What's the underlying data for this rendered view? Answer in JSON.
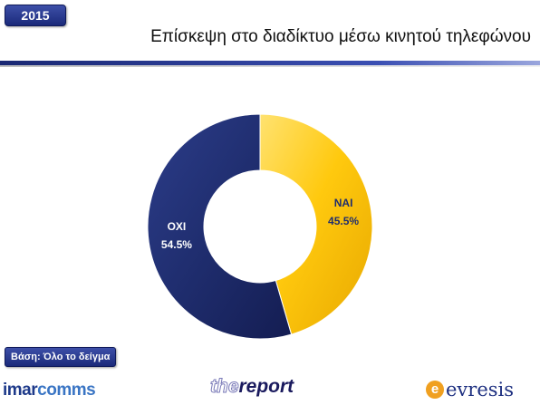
{
  "header": {
    "year": "2015",
    "title": "Επίσκεψη στο διαδίκτυο μέσω κινητού τηλεφώνου"
  },
  "footer": {
    "base_label": "Βάση: Όλο το δείγμα",
    "logos": {
      "imarcomms_a": "imar",
      "imarcomms_b": "comms",
      "report_a": "the",
      "report_b": "report",
      "evresis": "evresis"
    }
  },
  "colors": {
    "accent": "#1e2a78",
    "nai": "#ffc90e",
    "oxi": "#1f2d6e"
  },
  "chart_data": {
    "type": "pie",
    "donut": true,
    "title": "Επίσκεψη στο διαδίκτυο μέσω κινητού τηλεφώνου",
    "slices": [
      {
        "label": "ΝΑΙ",
        "value": 45.5,
        "display": "45.5%",
        "color": "#ffc90e"
      },
      {
        "label": "ΟΧΙ",
        "value": 54.5,
        "display": "54.5%",
        "color": "#1f2d6e"
      }
    ]
  }
}
